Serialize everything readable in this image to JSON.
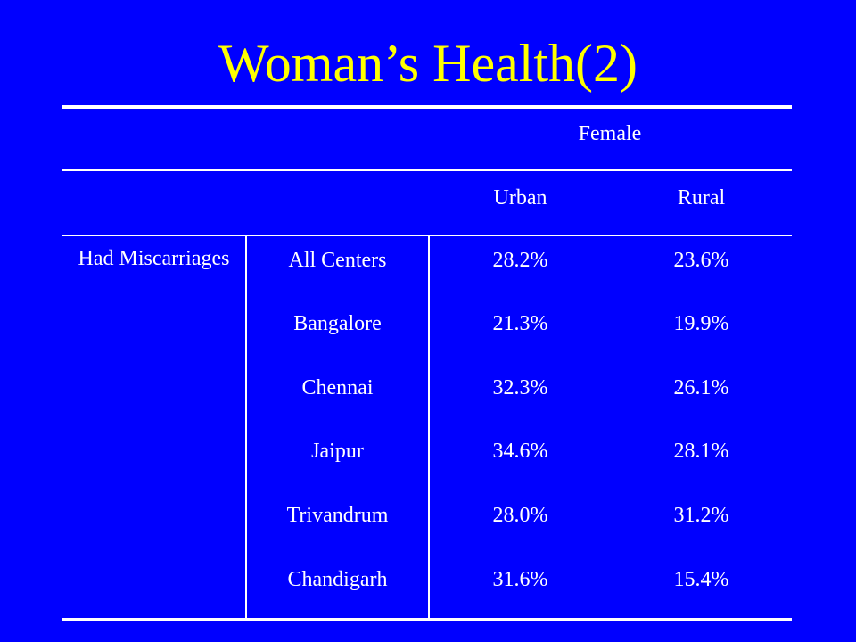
{
  "slide": {
    "title": "Woman’s Health(2)"
  },
  "table": {
    "group_header": "Female",
    "col_headers": [
      "Urban",
      "Rural"
    ],
    "row_group_label": "Had Miscarriages",
    "rows": [
      {
        "center": "All Centers",
        "urban": "28.2%",
        "rural": "23.6%"
      },
      {
        "center": "Bangalore",
        "urban": "21.3%",
        "rural": "19.9%"
      },
      {
        "center": "Chennai",
        "urban": "32.3%",
        "rural": "26.1%"
      },
      {
        "center": "Jaipur",
        "urban": "34.6%",
        "rural": "28.1%"
      },
      {
        "center": "Trivandrum",
        "urban": "28.0%",
        "rural": "31.2%"
      },
      {
        "center": "Chandigarh",
        "urban": "31.6%",
        "rural": "15.4%"
      }
    ]
  },
  "colors": {
    "background": "#0000ff",
    "title": "#ffff00",
    "text": "#ffffff"
  }
}
